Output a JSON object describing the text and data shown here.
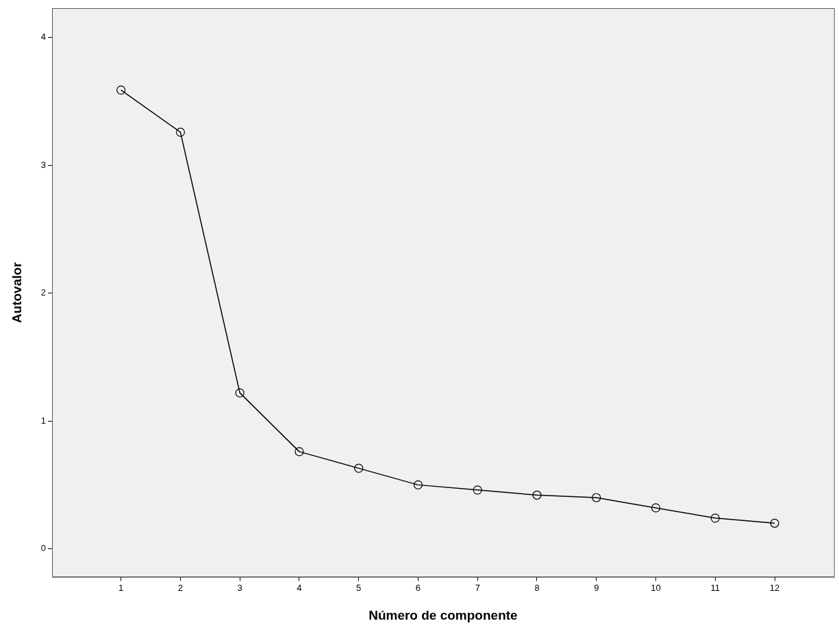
{
  "chart_data": {
    "type": "line",
    "xlabel": "Número de componente",
    "ylabel": "Autovalor",
    "x": [
      1,
      2,
      3,
      4,
      5,
      6,
      7,
      8,
      9,
      10,
      11,
      12
    ],
    "series": [
      {
        "color": "#000000",
        "values": [
          3.59,
          3.26,
          1.22,
          0.76,
          0.63,
          0.5,
          0.46,
          0.42,
          0.4,
          0.32,
          0.24,
          0.2
        ]
      }
    ],
    "xlim": [
      -0.16,
      13
    ],
    "xticks": [
      1,
      2,
      3,
      4,
      5,
      6,
      7,
      8,
      9,
      10,
      11,
      12
    ],
    "ylim": [
      -0.22,
      4.23
    ],
    "yticks": [
      0,
      1,
      2,
      3,
      4
    ],
    "grid": false,
    "legend": false,
    "marker": "circle",
    "line_style": "solid"
  }
}
